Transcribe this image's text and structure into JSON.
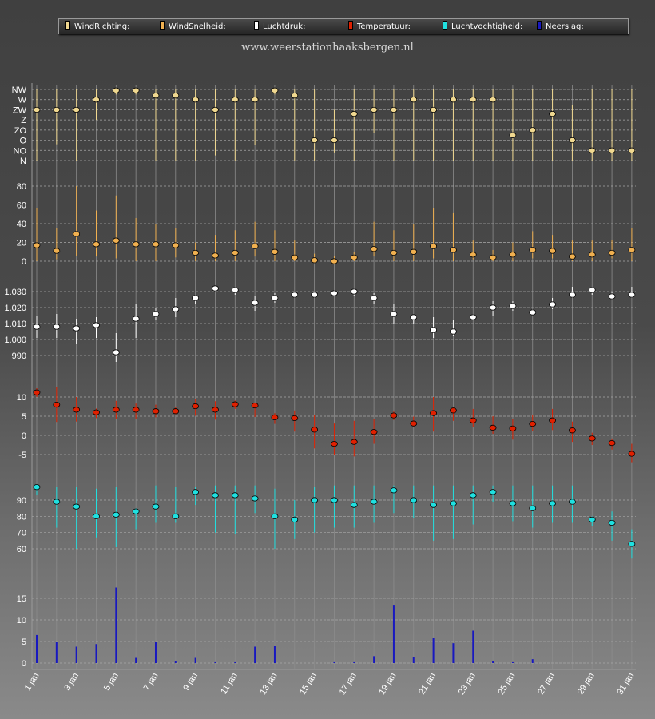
{
  "legend": [
    {
      "label": "WindRichting:",
      "color": "#f0d890"
    },
    {
      "label": "WindSnelheid:",
      "color": "#f0b050"
    },
    {
      "label": "Luchtdruk:",
      "color": "#ffffff"
    },
    {
      "label": "Temperatuur:",
      "color": "#e02000"
    },
    {
      "label": "Luchtvochtigheid:",
      "color": "#20e0e0"
    },
    {
      "label": "Neerslag:",
      "color": "#1818c0"
    }
  ],
  "site_url": "www.weerstationhaaksbergen.nl",
  "chart_data": {
    "type": "line",
    "x": [
      "1 jan",
      "2 jan",
      "3 jan",
      "4 jan",
      "5 jan",
      "6 jan",
      "7 jan",
      "8 jan",
      "9 jan",
      "10 jan",
      "11 jan",
      "12 jan",
      "13 jan",
      "14 jan",
      "15 jan",
      "16 jan",
      "17 jan",
      "18 jan",
      "19 jan",
      "20 jan",
      "21 jan",
      "22 jan",
      "23 jan",
      "24 jan",
      "25 jan",
      "26 jan",
      "27 jan",
      "28 jan",
      "29 jan",
      "30 jan",
      "31 jan"
    ],
    "x_tick_labels": [
      "1 jan",
      "3 jan",
      "5 jan",
      "7 jan",
      "9 jan",
      "11 jan",
      "13 jan",
      "15 jan",
      "17 jan",
      "19 jan",
      "21 jan",
      "23 jan",
      "25 jan",
      "27 jan",
      "29 jan",
      "31 jan"
    ],
    "grid": true,
    "panels": [
      {
        "name": "WindRichting",
        "color": "#f0d890",
        "ticks": [
          "N",
          "NO",
          "O",
          "ZO",
          "Z",
          "ZW",
          "W",
          "NW"
        ],
        "ylim": [
          0,
          7
        ],
        "values": [
          5,
          5,
          5,
          6,
          6.9,
          6.9,
          6.4,
          6.4,
          6,
          5,
          6,
          6,
          6.9,
          6.4,
          2,
          2,
          4.6,
          5,
          5,
          6,
          5,
          6,
          6,
          6,
          2.5,
          3,
          4.6,
          2,
          1,
          1,
          1
        ],
        "low": [
          0,
          1.6,
          0,
          4,
          6.5,
          6.5,
          0,
          0,
          0,
          0.5,
          0,
          1.5,
          6.5,
          0,
          0,
          0.8,
          0,
          2.7,
          0,
          0,
          0,
          0,
          0,
          0,
          0,
          0,
          0,
          0,
          0,
          0,
          0
        ],
        "high": [
          7,
          7,
          7,
          7,
          7,
          7,
          7,
          7,
          7,
          7,
          7,
          7,
          7,
          7,
          7,
          5,
          7,
          7,
          7,
          7,
          7,
          7,
          7,
          7,
          7,
          7,
          7,
          5.5,
          7,
          7,
          7
        ]
      },
      {
        "name": "WindSnelheid",
        "color": "#f0b050",
        "ticks": [
          "0",
          "20",
          "40",
          "60",
          "80"
        ],
        "ylim": [
          -5,
          87
        ],
        "values": [
          17,
          11,
          29,
          18,
          22,
          18,
          18,
          17,
          9,
          6,
          9,
          16,
          10,
          4,
          1,
          0,
          4,
          13,
          9,
          10,
          16,
          12,
          7,
          4,
          7,
          12,
          11,
          5,
          7,
          9,
          12
        ],
        "low": [
          0,
          2,
          6,
          5,
          3,
          0,
          0,
          4,
          0,
          0,
          0,
          5,
          0,
          0,
          0,
          0,
          0,
          5,
          0,
          0,
          3,
          0,
          2,
          0,
          0,
          3,
          3,
          0,
          0,
          3,
          0
        ],
        "high": [
          57,
          35,
          80,
          54,
          70,
          46,
          40,
          35,
          20,
          28,
          33,
          42,
          33,
          22,
          8,
          5,
          10,
          42,
          33,
          40,
          57,
          52,
          22,
          12,
          20,
          32,
          28,
          22,
          22,
          23,
          35
        ]
      },
      {
        "name": "Luchtdruk",
        "color": "#ffffff",
        "ticks": [
          "990",
          "1.000",
          "1.010",
          "1.020",
          "1.030"
        ],
        "ylim": [
          980,
          1033
        ],
        "values": [
          1008,
          1008,
          1007,
          1009,
          992,
          1013,
          1016,
          1019,
          1026,
          1032,
          1031,
          1023,
          1026,
          1028,
          1028,
          1029,
          1030,
          1026,
          1016,
          1014,
          1006,
          1005,
          1014,
          1020,
          1021,
          1017,
          1022,
          1028,
          1031,
          1027,
          1028
        ],
        "low": [
          1001,
          1001,
          997,
          1001,
          986,
          1001,
          1012,
          1014,
          1022,
          1030,
          1028,
          1018,
          1023,
          1026,
          1026,
          1027,
          1027,
          1022,
          1010,
          1010,
          1001,
          1002,
          1012,
          1015,
          1018,
          1016,
          1019,
          1026,
          1028,
          1025,
          1026
        ],
        "high": [
          1015,
          1016,
          1013,
          1014,
          1004,
          1022,
          1020,
          1026,
          1028,
          1033,
          1033,
          1027,
          1029,
          1030,
          1030,
          1031,
          1032,
          1029,
          1022,
          1015,
          1014,
          1012,
          1016,
          1024,
          1024,
          1019,
          1026,
          1033,
          1033,
          1030,
          1033
        ]
      },
      {
        "name": "Temperatuur",
        "color": "#e02000",
        "ticks": [
          "-5",
          "0",
          "5",
          "10"
        ],
        "ylim": [
          -8,
          13
        ],
        "values": [
          11.2,
          8,
          6.7,
          6,
          6.7,
          6.7,
          6.3,
          6.3,
          7.6,
          6.7,
          8.1,
          7.8,
          4.7,
          4.5,
          1.5,
          -2.2,
          -1.7,
          0.9,
          5.2,
          3.1,
          5.8,
          6.5,
          3.9,
          2,
          1.8,
          3,
          3.9,
          1.3,
          -0.8,
          -2,
          -4.8
        ],
        "low": [
          10,
          3.5,
          3.6,
          4.5,
          4.2,
          4.2,
          4.7,
          5.5,
          5.1,
          4.1,
          6.9,
          4.8,
          3,
          1,
          -3.4,
          -5,
          -5.5,
          -2.2,
          4,
          2.2,
          1,
          3.8,
          2.2,
          0.4,
          -1.1,
          1.2,
          1.4,
          -1.7,
          -2.5,
          -3.7,
          -7
        ],
        "high": [
          12.3,
          12.5,
          10,
          7,
          9,
          8.3,
          8,
          7.4,
          9.4,
          8.9,
          9.1,
          8.5,
          5.8,
          6.5,
          5.4,
          3.1,
          3.8,
          4.2,
          6.2,
          4.9,
          10,
          7.4,
          6.9,
          5,
          4.2,
          5.3,
          6.9,
          3.6,
          0.7,
          -0.8,
          -2.2
        ]
      },
      {
        "name": "Luchtvochtigheid",
        "color": "#20e0e0",
        "ticks": [
          "60",
          "70",
          "80",
          "90"
        ],
        "ylim": [
          50,
          100
        ],
        "values": [
          98,
          89,
          86,
          80,
          81,
          83,
          86,
          80,
          95,
          93,
          93,
          91,
          80,
          78,
          90,
          90,
          87,
          89,
          96,
          90,
          87,
          88,
          93,
          95,
          88,
          85,
          88,
          89,
          78,
          76,
          63
        ],
        "low": [
          93,
          73,
          60,
          67,
          61,
          72,
          76,
          76,
          87,
          70,
          69,
          82,
          60,
          66,
          70,
          73,
          73,
          76,
          82,
          79,
          65,
          66,
          75,
          89,
          77,
          73,
          76,
          76,
          74,
          65,
          54
        ],
        "high": [
          99,
          98,
          98,
          97,
          98,
          85,
          99,
          98,
          98,
          99,
          99,
          99,
          97,
          90,
          98,
          99,
          99,
          99,
          99,
          99,
          99,
          99,
          99,
          99,
          99,
          99,
          99,
          99,
          80,
          83,
          72
        ]
      },
      {
        "name": "Neerslag",
        "color": "#1818c0",
        "ticks": [
          "0",
          "5",
          "10",
          "15"
        ],
        "ylim": [
          0,
          18
        ],
        "values": [
          6.5,
          5,
          3.8,
          4.4,
          17.5,
          1.2,
          5,
          0.5,
          1.2,
          0.2,
          0.2,
          3.8,
          4,
          0,
          0,
          0.2,
          0.2,
          1.6,
          13.5,
          1.3,
          5.8,
          4.6,
          7.5,
          0.5,
          0.2,
          0.9,
          0,
          0,
          0,
          0,
          0
        ]
      }
    ]
  }
}
